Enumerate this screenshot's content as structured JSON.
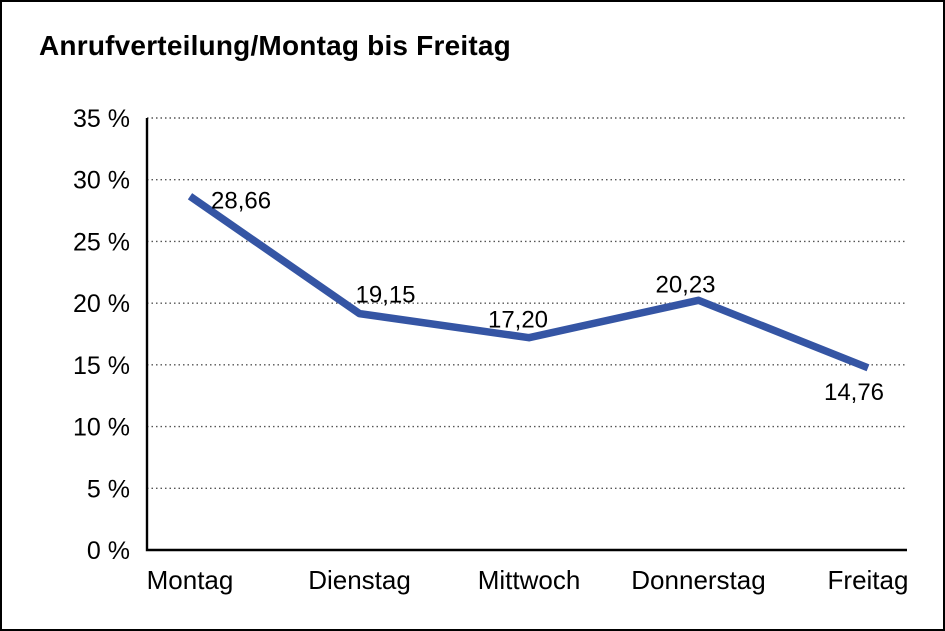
{
  "window": {
    "title": "Anrufverteilung/Montag bis Freitag"
  },
  "chart_data": {
    "type": "line",
    "title": "Anrufverteilung/Montag bis Freitag",
    "categories": [
      "Montag",
      "Dienstag",
      "Mittwoch",
      "Donnerstag",
      "Freitag"
    ],
    "values": [
      28.66,
      19.15,
      17.2,
      20.23,
      14.76
    ],
    "data_labels": [
      "28,66",
      "19,15",
      "17,20",
      "20,23",
      "14,76"
    ],
    "xlabel": "",
    "ylabel": "",
    "ylim": [
      0,
      35
    ],
    "ytick_step": 5,
    "ytick_labels": [
      "0 %",
      "5 %",
      "10 %",
      "15 %",
      "20 %",
      "25 %",
      "30 %",
      "35 %"
    ],
    "grid": "horizontal-dotted",
    "legend": "none",
    "colors": {
      "line": "#3555A4",
      "axis": "#000000",
      "gridline": "#555555",
      "text": "#000000",
      "background": "#ffffff"
    }
  }
}
